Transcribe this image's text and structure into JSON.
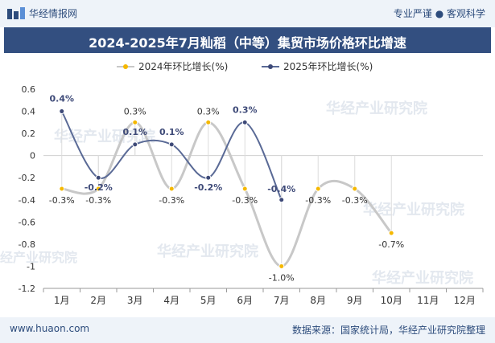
{
  "header": {
    "brand": "华经情报网",
    "tagline": "专业严谨 ● 客观科学"
  },
  "title": "2024-2025年7月籼稻（中等）集贸市场价格环比增速",
  "footer": {
    "website": "www.huaon.com",
    "source": "数据来源：国家统计局，华经产业研究院整理"
  },
  "watermark": "华经产业研究院",
  "chart_data": {
    "type": "line",
    "categories": [
      "1月",
      "2月",
      "3月",
      "4月",
      "5月",
      "6月",
      "7月",
      "8月",
      "9月",
      "10月",
      "11月",
      "12月"
    ],
    "ylim": [
      -1.2,
      0.6
    ],
    "yticks": [
      "0.6",
      "0.4",
      "0.2",
      "0",
      "-0.2",
      "-0.4",
      "-0.6",
      "-0.8",
      "-1",
      "-1.2"
    ],
    "legend_position": "top",
    "series": [
      {
        "name": "2024年环比增长(%)",
        "color": "#c8c8c8",
        "marker_color": "#f5b800",
        "values": [
          -0.3,
          -0.3,
          0.3,
          -0.3,
          0.3,
          -0.3,
          -1.0,
          -0.3,
          -0.3,
          -0.7,
          null,
          null
        ],
        "labels": [
          "-0.3%",
          "-0.3%",
          "0.3%",
          "-0.3%",
          "0.3%",
          "-0.3%",
          "-1.0%",
          "-0.3%",
          "-0.3%",
          "-0.7%",
          "",
          ""
        ]
      },
      {
        "name": "2025年环比增长(%)",
        "color": "#5a6a96",
        "marker_color": "#3e4a78",
        "values": [
          0.4,
          -0.2,
          0.1,
          0.1,
          -0.2,
          0.3,
          -0.4,
          null,
          null,
          null,
          null,
          null
        ],
        "labels": [
          "0.4%",
          "-0.2%",
          "0.1%",
          "0.1%",
          "-0.2%",
          "0.3%",
          "-0.4%",
          "",
          "",
          "",
          "",
          ""
        ]
      }
    ]
  }
}
